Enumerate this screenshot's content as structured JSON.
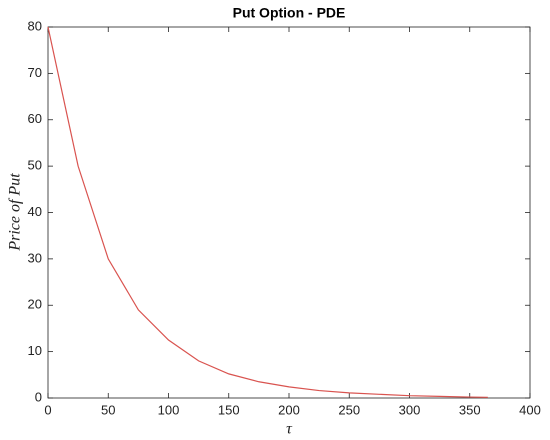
{
  "chart_data": {
    "type": "line",
    "title": "Put Option - PDE",
    "xlabel": "τ",
    "ylabel": "Price of Put",
    "x": [
      0,
      25,
      50,
      75,
      100,
      125,
      150,
      175,
      200,
      225,
      250,
      275,
      300,
      325,
      350,
      365
    ],
    "series": [
      {
        "color": "#d9534f",
        "values": [
          80,
          50,
          30,
          19,
          12.5,
          8,
          5.2,
          3.5,
          2.4,
          1.6,
          1.1,
          0.8,
          0.5,
          0.35,
          0.2,
          0.15
        ]
      }
    ],
    "xlim": [
      0,
      400
    ],
    "xticks": [
      0,
      50,
      100,
      150,
      200,
      250,
      300,
      350,
      400
    ],
    "ylim": [
      0,
      80
    ],
    "yticks": [
      0,
      10,
      20,
      30,
      40,
      50,
      60,
      70,
      80
    ],
    "grid": false
  }
}
